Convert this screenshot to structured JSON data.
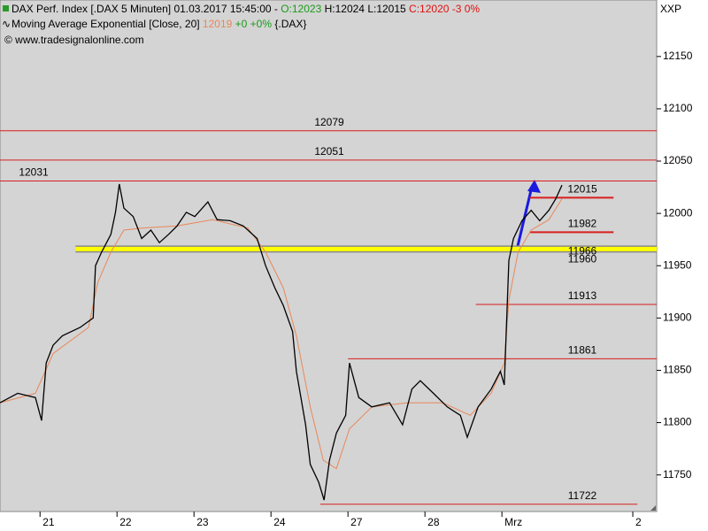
{
  "chart_data": {
    "type": "line",
    "header": {
      "datetime": "01.03.2017 15:45:00 -",
      "open": "O:12023",
      "high_low": "H:12024 L:12015",
      "close": "C:12020 -3 0%",
      "ma_value": "12019",
      "ma_change": "+0 +0%",
      "ma_symbol": "{.DAX}",
      "source": "© www.tradesignalonline.com"
    },
    "symbol": "XXP",
    "series": [
      {
        "name": "DAX Perf. Index [.DAX  5 Minuten]",
        "color": "#000000",
        "x": [
          -0.52,
          -0.29,
          -0.06,
          0.02,
          0.08,
          0.17,
          0.29,
          0.52,
          0.69,
          0.72,
          0.8,
          0.92,
          0.98,
          1.03,
          1.09,
          1.21,
          1.32,
          1.44,
          1.55,
          1.67,
          1.78,
          1.9,
          2.01,
          2.18,
          2.3,
          2.47,
          2.64,
          2.82,
          2.93,
          3.05,
          3.16,
          3.28,
          3.33,
          3.45,
          3.51,
          3.62,
          3.69,
          3.76,
          3.85,
          3.97,
          4.02,
          4.14,
          4.31,
          4.54,
          4.71,
          4.83,
          4.94,
          5.11,
          5.29,
          5.46,
          5.55,
          5.69,
          5.86,
          5.98,
          6.03,
          6.09,
          6.15,
          6.26,
          6.38,
          6.49,
          6.61,
          6.7,
          6.78
        ],
        "values": [
          11819,
          11828,
          11824,
          11802,
          11857,
          11874,
          11883,
          11891,
          11900,
          11950,
          11963,
          11980,
          12001,
          12028,
          12005,
          11997,
          11976,
          11984,
          11972,
          11980,
          11988,
          12001,
          11997,
          12011,
          11994,
          11993,
          11988,
          11976,
          11950,
          11929,
          11912,
          11887,
          11849,
          11798,
          11760,
          11743,
          11726,
          11764,
          11790,
          11807,
          11857,
          11824,
          11815,
          11819,
          11798,
          11832,
          11840,
          11828,
          11815,
          11807,
          11786,
          11815,
          11832,
          11849,
          11836,
          11955,
          11976,
          11993,
          12003,
          11993,
          12003,
          12014,
          12027
        ]
      },
      {
        "name": "Moving Average Exponential [Close, 20]",
        "color": "#e8875a",
        "x": [
          -0.52,
          -0.06,
          0.17,
          0.63,
          0.75,
          0.92,
          1.09,
          1.32,
          1.78,
          2.24,
          2.7,
          2.93,
          3.16,
          3.33,
          3.51,
          3.68,
          3.85,
          4.02,
          4.31,
          4.77,
          5.23,
          5.59,
          5.86,
          6.03,
          6.09,
          6.21,
          6.38,
          6.61,
          6.78
        ],
        "values": [
          11819,
          11828,
          11866,
          11891,
          11934,
          11963,
          11984,
          11986,
          11988,
          11994,
          11986,
          11963,
          11929,
          11883,
          11815,
          11764,
          11756,
          11794,
          11815,
          11819,
          11819,
          11807,
          11828,
          11857,
          11917,
          11963,
          11984,
          11994,
          12014
        ]
      }
    ],
    "levels": [
      {
        "value": 12079,
        "start": -0.52,
        "color": "#d81e1e"
      },
      {
        "value": 12051,
        "start": -0.52,
        "color": "#d81e1e"
      },
      {
        "value": 12031,
        "start": -0.52,
        "color": "#d81e1e"
      },
      {
        "value": 12015,
        "start": 6.36,
        "end": 7.45,
        "color": "#d81e1e"
      },
      {
        "value": 11982,
        "start": 6.36,
        "end": 7.45,
        "color": "#d81e1e"
      },
      {
        "value": 11966,
        "start": 0.46,
        "color": "#ffff00"
      },
      {
        "value": 11913,
        "start": 5.66,
        "color": "#d81e1e"
      },
      {
        "value": 11861,
        "start": 4.0,
        "color": "#d81e1e"
      },
      {
        "value": 11722,
        "start": 3.64,
        "end": 7.76,
        "color": "#d81e1e"
      }
    ],
    "blue_labels": [
      11966,
      11960
    ],
    "xlim": [
      -0.52,
      8.01
    ],
    "xticks": [
      {
        "value": 0,
        "label": "21"
      },
      {
        "value": 1,
        "label": "22"
      },
      {
        "value": 2,
        "label": "23"
      },
      {
        "value": 3,
        "label": "24"
      },
      {
        "value": 4,
        "label": "27"
      },
      {
        "value": 5,
        "label": "28"
      },
      {
        "value": 6,
        "label": "Mrz"
      },
      {
        "value": 7.7,
        "label": "2"
      }
    ],
    "ylim": [
      11715,
      12204
    ],
    "yticks": [
      11750,
      11800,
      11850,
      11900,
      11950,
      12000,
      12050,
      12100,
      12150
    ]
  }
}
